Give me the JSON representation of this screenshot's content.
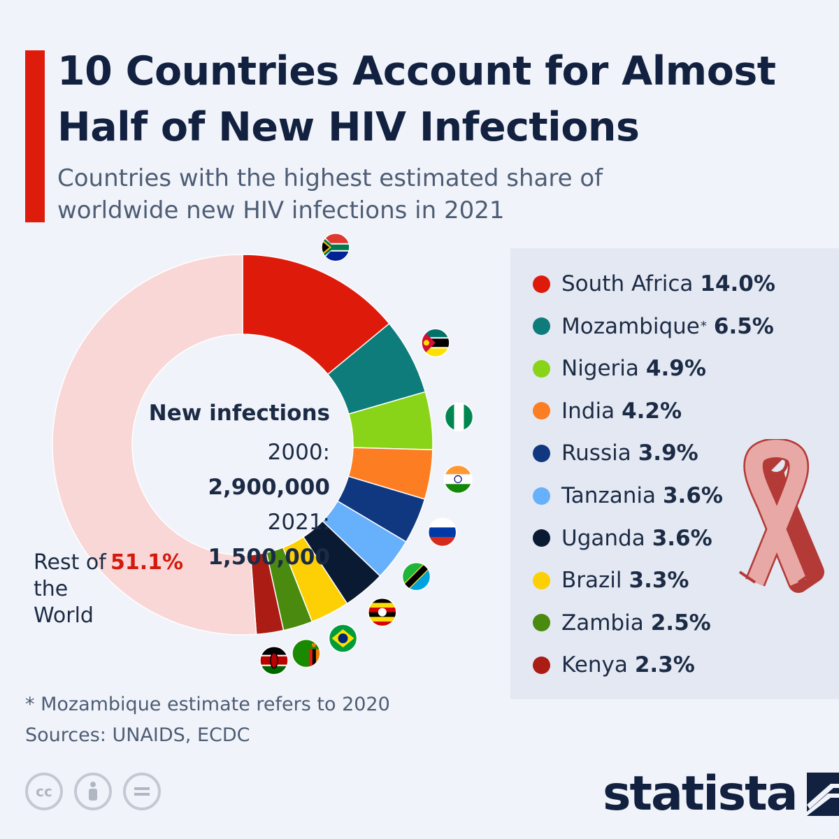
{
  "title": "10 Countries Account for Almost Half of New HIV Infections",
  "subtitle": "Countries with the highest estimated share of worldwide new HIV infections in 2021",
  "center": {
    "heading": "New infections",
    "row1_label": "2000:",
    "row1_value": "2,900,000",
    "row2_label": "2021:",
    "row2_value": "1,500,000"
  },
  "rest": {
    "label": "Rest of the World",
    "value": "51.1%"
  },
  "chart_data": {
    "type": "pie",
    "donut": true,
    "title": "10 Countries Account for Almost Half of New HIV Infections",
    "unit": "%",
    "series": [
      {
        "name": "South Africa",
        "value": 14.0,
        "label": "14.0%",
        "color": "#de1b0b",
        "flag": "flag-south-africa"
      },
      {
        "name": "Mozambique",
        "asterisk": "*",
        "value": 6.5,
        "label": "6.5%",
        "color": "#0e7c7b",
        "flag": "flag-mozambique"
      },
      {
        "name": "Nigeria",
        "value": 4.9,
        "label": "4.9%",
        "color": "#89d419",
        "flag": "flag-nigeria"
      },
      {
        "name": "India",
        "value": 4.2,
        "label": "4.2%",
        "color": "#fd7d23",
        "flag": "flag-india"
      },
      {
        "name": "Russia",
        "value": 3.9,
        "label": "3.9%",
        "color": "#0f3880",
        "flag": "flag-russia"
      },
      {
        "name": "Tanzania",
        "value": 3.6,
        "label": "3.6%",
        "color": "#67b0fb",
        "flag": "flag-tanzania"
      },
      {
        "name": "Uganda",
        "value": 3.6,
        "label": "3.6%",
        "color": "#0b1a33",
        "flag": "flag-uganda"
      },
      {
        "name": "Brazil",
        "value": 3.3,
        "label": "3.3%",
        "color": "#fcd004",
        "flag": "flag-brazil"
      },
      {
        "name": "Zambia",
        "value": 2.5,
        "label": "2.5%",
        "color": "#4a8a0f",
        "flag": "flag-zambia"
      },
      {
        "name": "Kenya",
        "value": 2.3,
        "label": "2.3%",
        "color": "#ab1c14",
        "flag": "flag-kenya"
      },
      {
        "name": "Rest of the World",
        "value": 51.1,
        "label": "51.1%",
        "color": "#f9d7d7"
      }
    ]
  },
  "footnote": "* Mozambique estimate refers to 2020",
  "sources": "Sources: UNAIDS, ECDC",
  "license_icons": [
    "cc-icon",
    "attribution-icon",
    "no-derivatives-icon"
  ],
  "brand": "statista"
}
